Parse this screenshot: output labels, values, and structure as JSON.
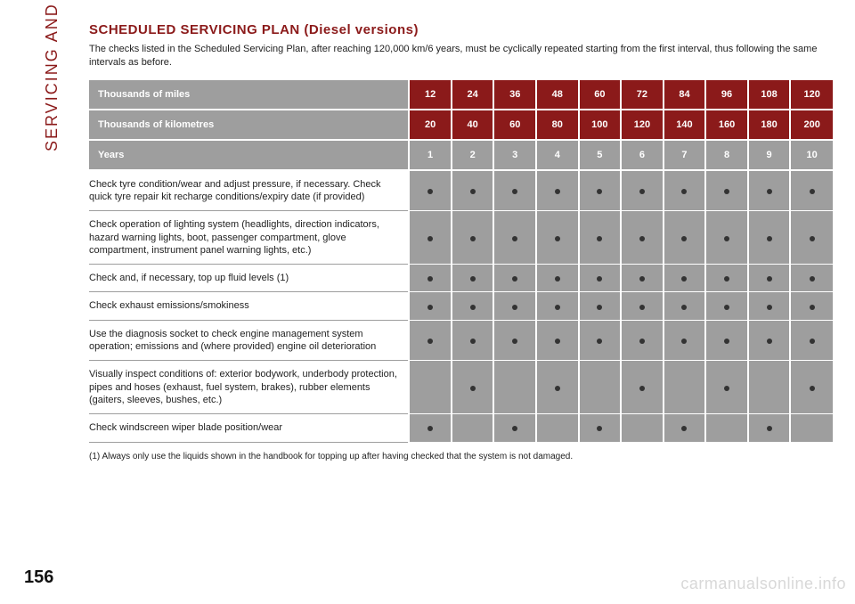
{
  "sidebar": {
    "label": "SERVICING AND CARE"
  },
  "page_number": "156",
  "title": "SCHEDULED SERVICING PLAN (Diesel versions)",
  "intro": "The checks listed in the Scheduled Servicing Plan, after reaching 120,000 km/6 years, must be cyclically repeated starting from the first interval, thus following the same intervals as before.",
  "header_rows": [
    {
      "label": "Thousands of miles",
      "values": [
        "12",
        "24",
        "36",
        "48",
        "60",
        "72",
        "84",
        "96",
        "108",
        "120"
      ],
      "cell_bg": "#8b1a1a"
    },
    {
      "label": "Thousands of kilometres",
      "values": [
        "20",
        "40",
        "60",
        "80",
        "100",
        "120",
        "140",
        "160",
        "180",
        "200"
      ],
      "cell_bg": "#8b1a1a"
    },
    {
      "label": "Years",
      "values": [
        "1",
        "2",
        "3",
        "4",
        "5",
        "6",
        "7",
        "8",
        "9",
        "10"
      ],
      "cell_bg": "#9e9e9e"
    }
  ],
  "rows": [
    {
      "desc": "Check tyre condition/wear and adjust pressure, if necessary. Check quick tyre repair kit recharge conditions/expiry date (if provided)",
      "dots": [
        1,
        1,
        1,
        1,
        1,
        1,
        1,
        1,
        1,
        1
      ]
    },
    {
      "desc": "Check operation of lighting system (headlights, direction indicators, hazard warning lights, boot, passenger compartment, glove compartment, instrument panel warning lights, etc.)",
      "dots": [
        1,
        1,
        1,
        1,
        1,
        1,
        1,
        1,
        1,
        1
      ]
    },
    {
      "desc": "Check and, if necessary, top up fluid levels (1)",
      "dots": [
        1,
        1,
        1,
        1,
        1,
        1,
        1,
        1,
        1,
        1
      ]
    },
    {
      "desc": "Check exhaust emissions/smokiness",
      "dots": [
        1,
        1,
        1,
        1,
        1,
        1,
        1,
        1,
        1,
        1
      ]
    },
    {
      "desc": "Use the diagnosis socket to check engine management system operation; emissions and (where provided) engine oil deterioration",
      "dots": [
        1,
        1,
        1,
        1,
        1,
        1,
        1,
        1,
        1,
        1
      ]
    },
    {
      "desc": "Visually inspect conditions of: exterior bodywork, underbody protection, pipes and hoses (exhaust, fuel system, brakes), rubber elements (gaiters, sleeves, bushes, etc.)",
      "dots": [
        0,
        1,
        0,
        1,
        0,
        1,
        0,
        1,
        0,
        1
      ]
    },
    {
      "desc": "Check windscreen wiper blade position/wear",
      "dots": [
        1,
        0,
        1,
        0,
        1,
        0,
        1,
        0,
        1,
        0
      ]
    }
  ],
  "footnote": "(1) Always only use the liquids shown in the handbook for topping up after having checked that the system is not damaged.",
  "watermark": "carmanualsonline.info",
  "colors": {
    "accent": "#8b1a1a",
    "header_label_bg": "#9e9e9e",
    "cell_bg": "#9e9e9e",
    "dot": "#333333",
    "text": "#222222"
  }
}
